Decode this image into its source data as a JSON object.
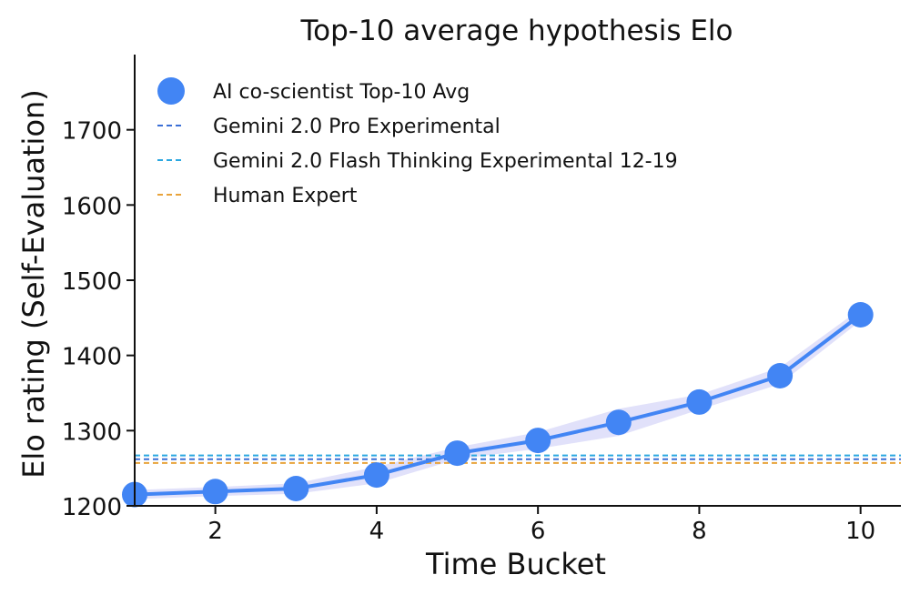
{
  "chart_data": {
    "type": "line",
    "title": "Top-10 average hypothesis Elo",
    "xlabel": "Time Bucket",
    "ylabel": "Elo rating (Self-Evaluation)",
    "xlim": [
      1,
      10.5
    ],
    "ylim": [
      1200,
      1800
    ],
    "xticks": [
      2,
      4,
      6,
      8,
      10
    ],
    "yticks": [
      1200,
      1300,
      1400,
      1500,
      1600,
      1700
    ],
    "grid": false,
    "legend_position": "top-left",
    "series": [
      {
        "name": "AI co-scientist Top-10 Avg",
        "style": "line-with-markers",
        "color": "#4285f4",
        "band_color": "#c9c9f5",
        "x": [
          1,
          2,
          3,
          4,
          5,
          6,
          7,
          8,
          9,
          10
        ],
        "values": [
          1215,
          1219,
          1223,
          1241,
          1270,
          1287,
          1311,
          1338,
          1373,
          1454
        ],
        "band_lower": [
          1209,
          1213,
          1216,
          1230,
          1262,
          1276,
          1293,
          1328,
          1362,
          1446
        ],
        "band_upper": [
          1221,
          1225,
          1230,
          1252,
          1278,
          1298,
          1329,
          1348,
          1384,
          1462
        ]
      }
    ],
    "reference_lines": [
      {
        "name": "Gemini 2.0 Pro Experimental",
        "value": 1262,
        "color": "#3b6fd6",
        "style": "dashed"
      },
      {
        "name": "Gemini 2.0 Flash Thinking Experimental 12-19",
        "value": 1267,
        "color": "#2aa7e0",
        "style": "dashed"
      },
      {
        "name": "Human Expert",
        "value": 1257,
        "color": "#e8a33a",
        "style": "dashed"
      }
    ]
  }
}
